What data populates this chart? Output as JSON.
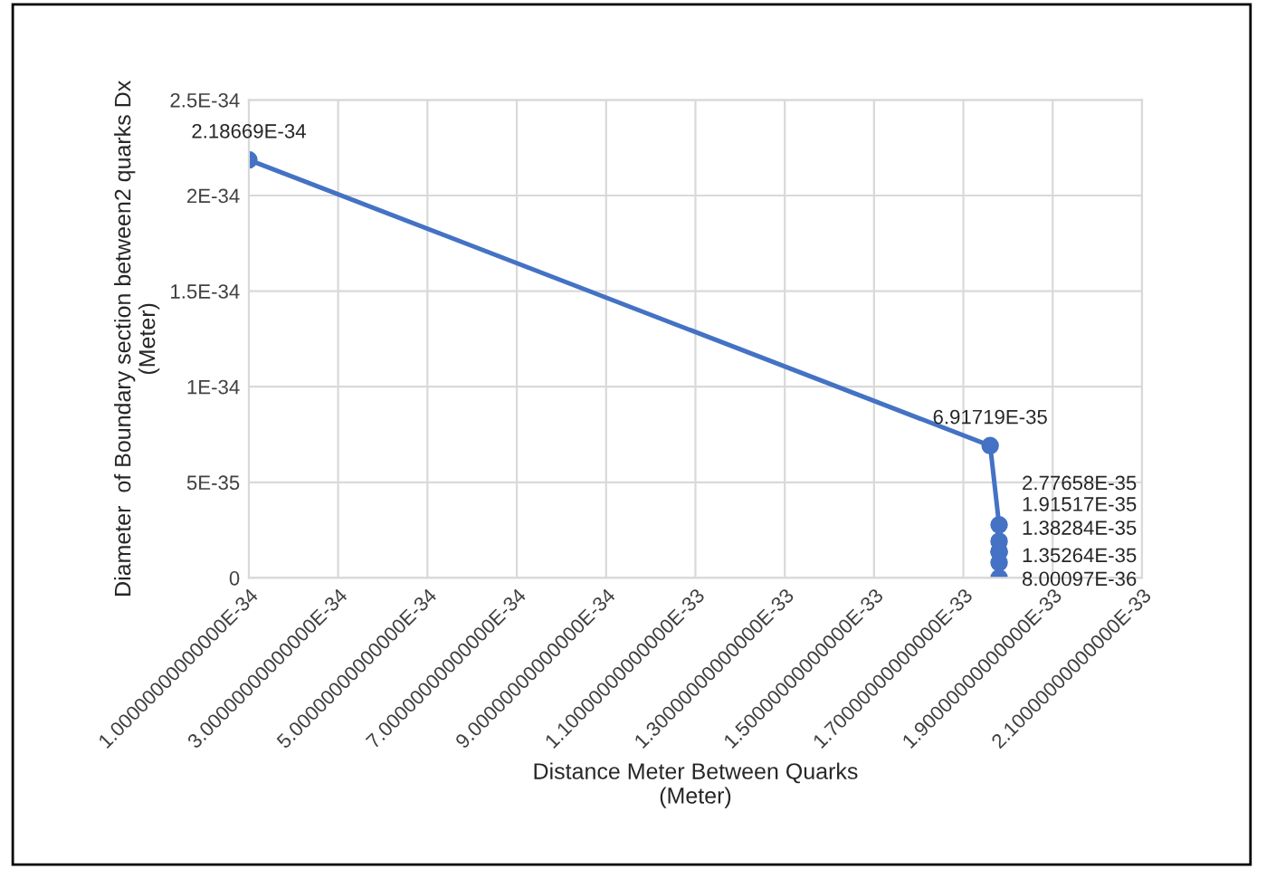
{
  "chart_data": {
    "type": "line",
    "xlabel": "Distance Meter Between Quarks\n(Meter)",
    "ylabel": "Diameter  of Boundary section between2 quarks Dx\n(Meter)",
    "x": [
      1e-34,
      1.76e-33,
      1.78e-33,
      1.78e-33,
      1.78e-33,
      1.78e-33,
      1.78e-33,
      1.78e-33
    ],
    "series": [
      {
        "color": "#4472c4",
        "values": [
          2.18669e-34,
          6.91719e-35,
          2.77658e-35,
          1.91517e-35,
          1.38284e-35,
          1.35264e-35,
          8.00097e-36,
          0
        ],
        "value_labels": [
          "2.18669E-34",
          "6.91719E-35",
          "2.77658E-35",
          "1.91517E-35",
          "1.38284E-35",
          "1.35264E-35",
          "8.00097E-36",
          null
        ]
      }
    ],
    "xlim": [
      1e-34,
      2.1e-33
    ],
    "xticks": [
      {
        "value": 1e-34,
        "label": "1.00000000000000E-34"
      },
      {
        "value": 3e-34,
        "label": "3.00000000000000E-34"
      },
      {
        "value": 5e-34,
        "label": "5.00000000000000E-34"
      },
      {
        "value": 7e-34,
        "label": "7.00000000000000E-34"
      },
      {
        "value": 9e-34,
        "label": "9.00000000000000E-34"
      },
      {
        "value": 1.1e-33,
        "label": "1.10000000000000E-33"
      },
      {
        "value": 1.3e-33,
        "label": "1.30000000000000E-33"
      },
      {
        "value": 1.5e-33,
        "label": "1.50000000000000E-33"
      },
      {
        "value": 1.7e-33,
        "label": "1.70000000000000E-33"
      },
      {
        "value": 1.9e-33,
        "label": "1.90000000000000E-33"
      },
      {
        "value": 2.1e-33,
        "label": "2.10000000000000E-33"
      }
    ],
    "ylim": [
      0,
      2.5e-34
    ],
    "yticks": [
      0,
      {
        "value": 5e-35,
        "label": "5E-35"
      },
      {
        "value": 1e-34,
        "label": "1E-34"
      },
      {
        "value": 1.5e-34,
        "label": "1.5E-34"
      },
      {
        "value": 2e-34,
        "label": "2E-34"
      },
      {
        "value": 2.5e-34,
        "label": "2.5E-34"
      }
    ],
    "grid": true,
    "marker": "circle",
    "line_style": "solid",
    "legend": false
  }
}
